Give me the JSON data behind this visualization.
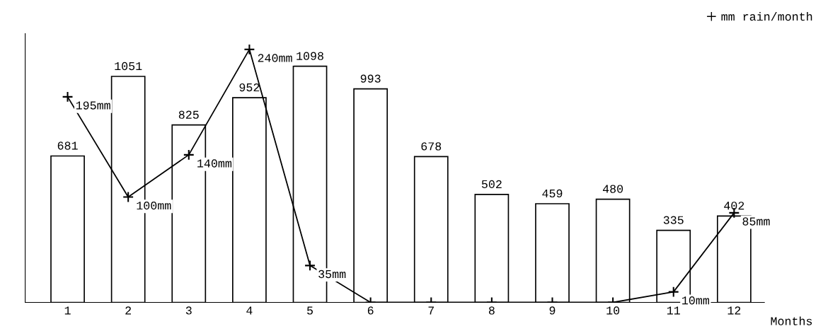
{
  "chart_data": {
    "type": "bar",
    "xlabel": "Months",
    "categories": [
      "1",
      "2",
      "3",
      "4",
      "5",
      "6",
      "7",
      "8",
      "9",
      "10",
      "11",
      "12"
    ],
    "series": [
      {
        "color": "#ffffff",
        "values": [
          681,
          1051,
          825,
          952,
          1098,
          993,
          678,
          502,
          459,
          480,
          335,
          402
        ],
        "value_labels": [
          "681",
          "1051",
          "825",
          "952",
          "1098",
          "993",
          "678",
          "502",
          "459",
          "480",
          "335",
          "402"
        ]
      },
      {
        "type": "line",
        "name": "mm rain/month",
        "axis": "y2",
        "color": "#000000",
        "marker": "cross",
        "values": [
          195,
          100,
          140,
          240,
          35,
          0,
          0,
          0,
          0,
          0,
          10,
          85
        ],
        "value_labels": [
          "195mm",
          "100mm",
          "140mm",
          "240mm",
          "35mm",
          null,
          null,
          null,
          null,
          null,
          "10mm",
          "85mm"
        ]
      }
    ],
    "ylim": [
      0,
      1250
    ],
    "y2lim": [
      0,
      255
    ],
    "tick_labels": "x",
    "legend": "top right",
    "grid": false
  }
}
